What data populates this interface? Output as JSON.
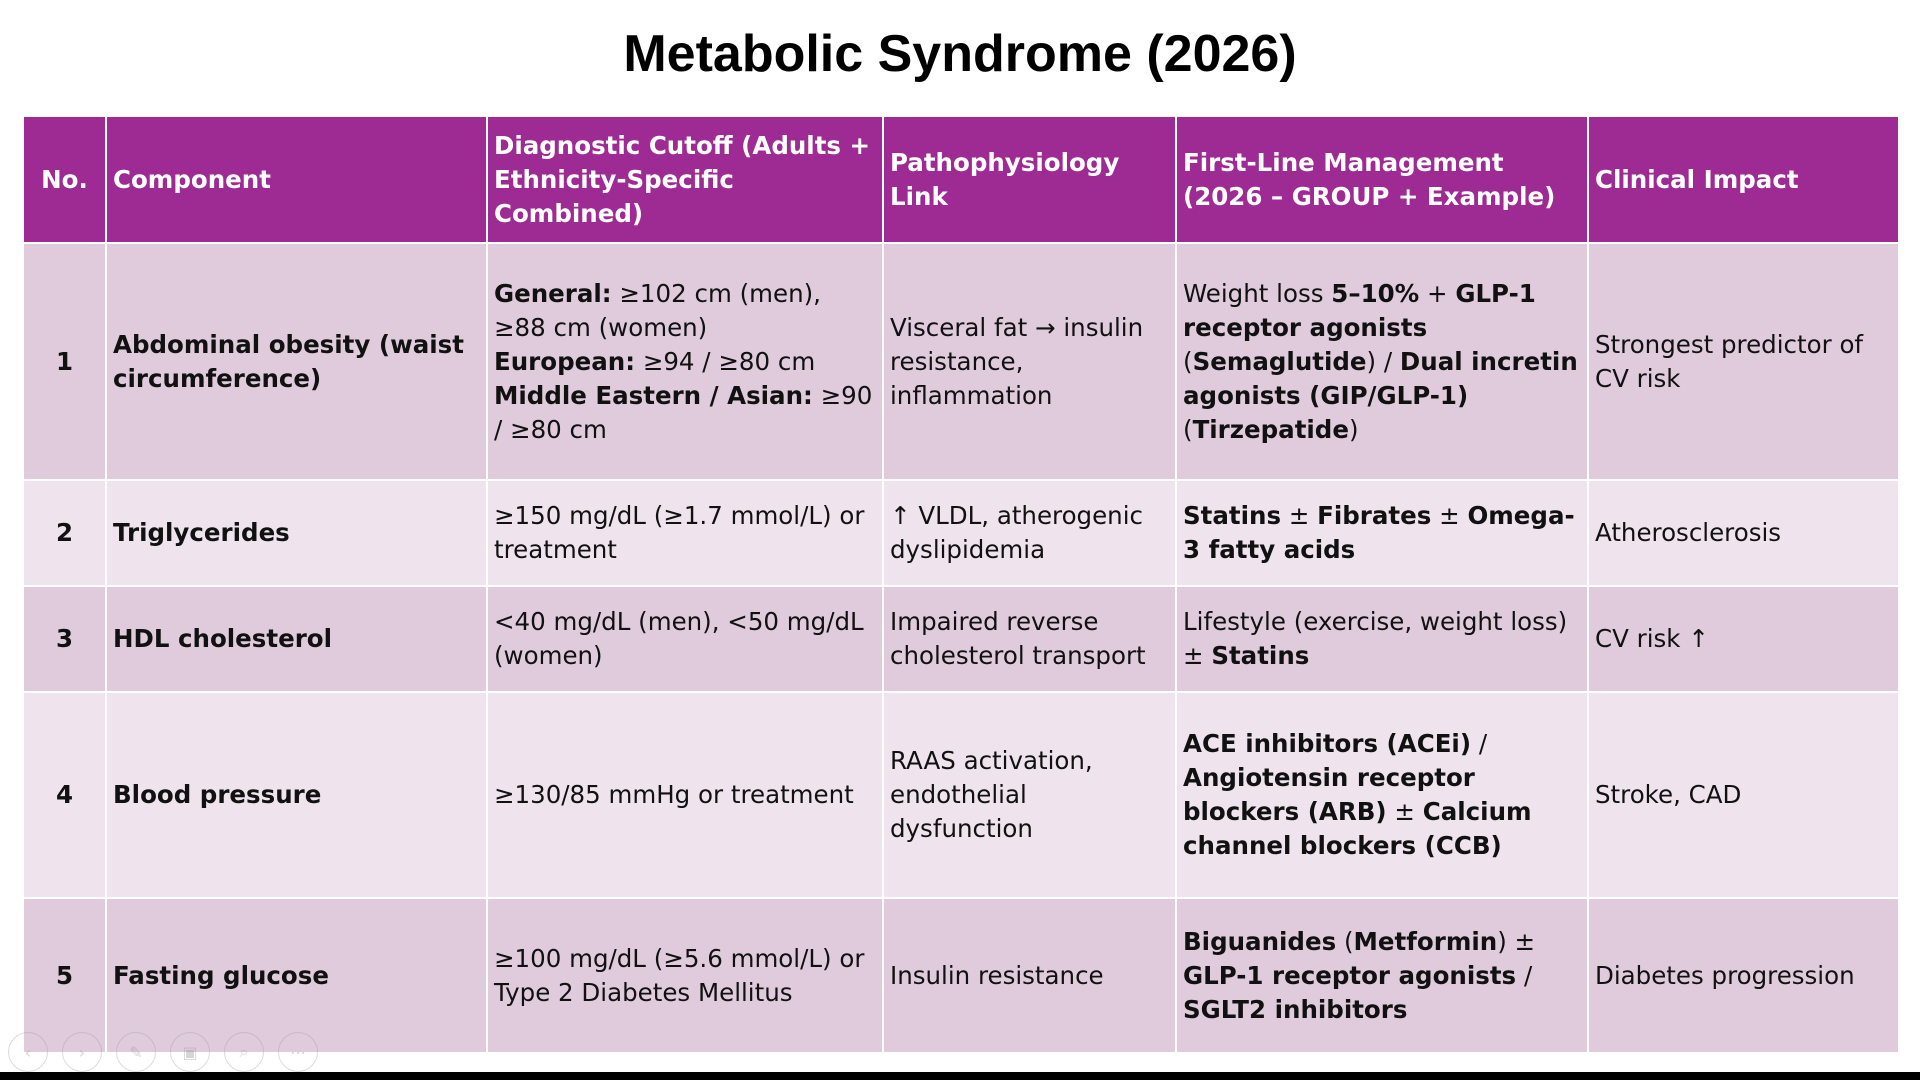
{
  "title": "Metabolic Syndrome (2026)",
  "table": {
    "headers": [
      "No.",
      "Component",
      "Diagnostic Cutoff (Adults + Ethnicity-Specific Combined)",
      "Pathophysiology Link",
      "First-Line Management (2026 – GROUP + Example)",
      "Clinical Impact"
    ],
    "rows": [
      {
        "no": "1",
        "component": "Abdominal obesity (waist circumference)",
        "cutoff": {
          "general_label": "General:",
          "general_value": " ≥102 cm (men), ≥88 cm (women)",
          "european_label": "European:",
          "european_value": " ≥94 / ≥80 cm",
          "asian_label": "Middle Eastern / Asian:",
          "asian_value": " ≥90 / ≥80 cm"
        },
        "patho": "Visceral fat → insulin resistance, inflammation",
        "management": {
          "t1": "Weight loss ",
          "b1": "5–10%",
          "t2": " + ",
          "b2": "GLP-1 receptor agonists",
          "t3": " (",
          "b3": "Semaglutide",
          "t4": ") / ",
          "b4": "Dual incretin agonists (GIP/GLP-1)",
          "t5": " (",
          "b5": "Tirzepatide",
          "t6": ")"
        },
        "impact": "Strongest predictor of CV risk"
      },
      {
        "no": "2",
        "component": "Triglycerides",
        "cutoff": "≥150 mg/dL (≥1.7 mmol/L) or treatment",
        "patho": "↑ VLDL, atherogenic dyslipidemia",
        "management": {
          "b1": "Statins",
          "t1": " ± ",
          "b2": "Fibrates",
          "t2": " ± ",
          "b3": "Omega-3 fatty acids"
        },
        "impact": "Atherosclerosis"
      },
      {
        "no": "3",
        "component": "HDL cholesterol",
        "cutoff": "<40 mg/dL (men), <50 mg/dL (women)",
        "patho": "Impaired reverse cholesterol transport",
        "management": {
          "t1": "Lifestyle (exercise, weight loss) ± ",
          "b1": "Statins"
        },
        "impact": "CV risk ↑"
      },
      {
        "no": "4",
        "component": "Blood pressure",
        "cutoff": "≥130/85 mmHg or treatment",
        "patho": "RAAS activation, endothelial dysfunction",
        "management": {
          "b1": "ACE inhibitors (ACEi)",
          "t1": " / ",
          "b2": "Angiotensin receptor blockers (ARB)",
          "t2": " ± ",
          "b3": "Calcium channel blockers (CCB)"
        },
        "impact": "Stroke, CAD"
      },
      {
        "no": "5",
        "component": "Fasting glucose",
        "cutoff": "≥100 mg/dL (≥5.6 mmol/L) or Type 2 Diabetes Mellitus",
        "patho": "Insulin resistance",
        "management": {
          "b1": "Biguanides",
          "t1": " (",
          "b2": "Metformin",
          "t2": ") ± ",
          "b3": "GLP-1 receptor agonists",
          "t3": " / ",
          "b4": "SGLT2 inhibitors"
        },
        "impact": "Diabetes progression"
      }
    ]
  },
  "nav": {
    "icons": [
      "prev-arrow-icon",
      "next-arrow-icon",
      "pen-icon",
      "slides-icon",
      "zoom-icon",
      "more-icon"
    ],
    "glyphs": [
      "‹",
      "›",
      "✎",
      "▣",
      "⌕",
      "⋯"
    ]
  },
  "colors": {
    "header_bg": "#9e2a94",
    "row_dark": "#e0cbdd",
    "row_light": "#efe4ee"
  }
}
